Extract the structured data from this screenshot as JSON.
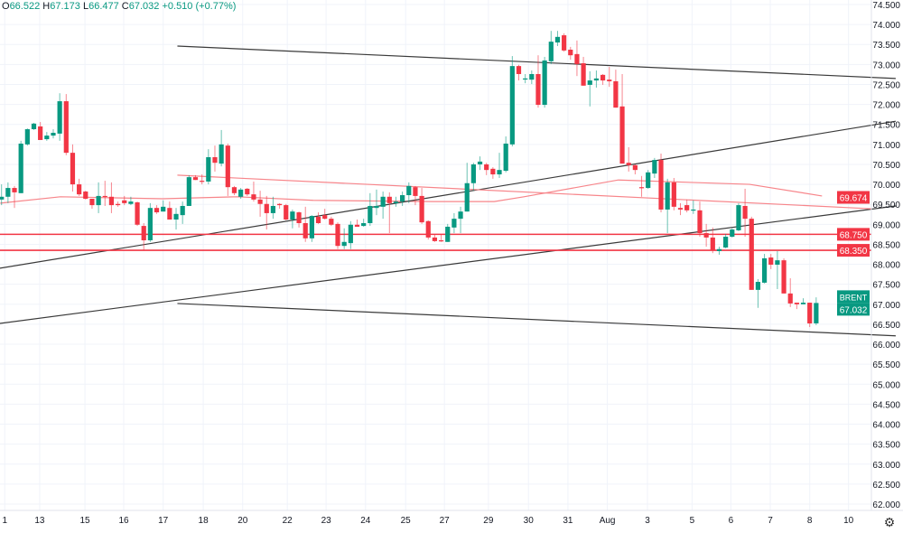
{
  "legend": {
    "o_label": "O",
    "o_value": "66.522",
    "h_label": "H",
    "h_value": "67.173",
    "l_label": "L",
    "l_value": "66.477",
    "c_label": "C",
    "c_value": "67.032",
    "change": "+0.510 (+0.77%)"
  },
  "settings_icon": "gear-icon",
  "chart_data": {
    "type": "candlestick",
    "symbol": "BRENT",
    "last_price": "67.032",
    "colors": {
      "up": "#089981",
      "down": "#f23645",
      "level": "#f23645",
      "ma": "#f7858a",
      "trend": "#3a3a3a"
    },
    "ylim": [
      62.0,
      74.5
    ],
    "y_ticks": [
      "74.500",
      "74.000",
      "73.500",
      "73.000",
      "72.500",
      "72.000",
      "71.500",
      "71.000",
      "70.500",
      "70.000",
      "69.500",
      "69.000",
      "68.500",
      "68.000",
      "67.500",
      "67.000",
      "66.500",
      "66.000",
      "65.500",
      "65.000",
      "64.500",
      "64.000",
      "63.500",
      "63.000",
      "62.500",
      "62.000"
    ],
    "x_ticks": [
      {
        "label": "1",
        "index": 0.5
      },
      {
        "label": "13",
        "index": 5.9
      },
      {
        "label": "15",
        "index": 12.9
      },
      {
        "label": "16",
        "index": 18.9
      },
      {
        "label": "17",
        "index": 25.0
      },
      {
        "label": "18",
        "index": 31.2
      },
      {
        "label": "20",
        "index": 37.3
      },
      {
        "label": "22",
        "index": 44.2
      },
      {
        "label": "23",
        "index": 50.2
      },
      {
        "label": "24",
        "index": 56.3
      },
      {
        "label": "25",
        "index": 62.5
      },
      {
        "label": "27",
        "index": 68.5
      },
      {
        "label": "29",
        "index": 75.3
      },
      {
        "label": "30",
        "index": 81.5
      },
      {
        "label": "31",
        "index": 87.6
      },
      {
        "label": "Aug",
        "index": 93.7
      },
      {
        "label": "3",
        "index": 99.9
      },
      {
        "label": "5",
        "index": 106.8
      },
      {
        "label": "6",
        "index": 112.8
      },
      {
        "label": "7",
        "index": 118.9
      },
      {
        "label": "8",
        "index": 125.0
      },
      {
        "label": "10",
        "index": 131.0
      }
    ],
    "candles_ohlc": [
      [
        69.62,
        70.0,
        69.48,
        69.69
      ],
      [
        69.69,
        70.05,
        69.53,
        69.91
      ],
      [
        69.91,
        69.96,
        69.41,
        69.8
      ],
      [
        69.78,
        71.09,
        69.78,
        71.02
      ],
      [
        71.0,
        71.4,
        70.97,
        71.38
      ],
      [
        71.38,
        71.54,
        71.36,
        71.52
      ],
      [
        71.45,
        71.56,
        71.11,
        71.11
      ],
      [
        71.13,
        71.31,
        71.09,
        71.22
      ],
      [
        71.22,
        71.38,
        71.15,
        71.29
      ],
      [
        71.27,
        72.28,
        71.09,
        72.08
      ],
      [
        72.08,
        72.26,
        70.73,
        70.79
      ],
      [
        70.79,
        71.0,
        69.82,
        70.0
      ],
      [
        70.0,
        70.14,
        69.71,
        69.75
      ],
      [
        69.82,
        69.84,
        69.62,
        69.64
      ],
      [
        69.64,
        69.64,
        69.39,
        69.48
      ],
      [
        69.48,
        70.05,
        69.28,
        69.71
      ],
      [
        69.71,
        70.09,
        69.46,
        69.69
      ],
      [
        69.69,
        70.05,
        69.28,
        69.48
      ],
      [
        69.51,
        69.57,
        69.44,
        69.48
      ],
      [
        69.6,
        69.71,
        69.48,
        69.53
      ],
      [
        69.51,
        69.69,
        69.48,
        69.57
      ],
      [
        69.55,
        69.57,
        68.96,
        68.99
      ],
      [
        68.96,
        69.03,
        68.35,
        68.6
      ],
      [
        68.6,
        69.53,
        68.56,
        69.41
      ],
      [
        69.41,
        69.48,
        69.26,
        69.3
      ],
      [
        69.32,
        69.6,
        69.32,
        69.44
      ],
      [
        69.41,
        69.57,
        69.12,
        69.12
      ],
      [
        69.12,
        69.41,
        68.87,
        69.26
      ],
      [
        69.23,
        69.57,
        69.01,
        69.46
      ],
      [
        69.46,
        70.23,
        69.46,
        70.18
      ],
      [
        70.18,
        70.23,
        70.11,
        70.11
      ],
      [
        70.09,
        70.25,
        70.0,
        70.07
      ],
      [
        70.07,
        70.88,
        70.0,
        70.68
      ],
      [
        70.68,
        70.97,
        70.32,
        70.54
      ],
      [
        70.52,
        71.36,
        70.45,
        71.0
      ],
      [
        70.97,
        71.02,
        69.71,
        69.93
      ],
      [
        69.93,
        69.96,
        69.73,
        69.78
      ],
      [
        69.69,
        69.91,
        69.64,
        69.87
      ],
      [
        69.89,
        69.91,
        69.71,
        69.75
      ],
      [
        69.75,
        70.07,
        69.57,
        69.62
      ],
      [
        69.62,
        69.84,
        69.19,
        69.51
      ],
      [
        69.51,
        69.71,
        68.87,
        69.28
      ],
      [
        69.28,
        69.69,
        69.14,
        69.46
      ],
      [
        69.51,
        69.53,
        69.39,
        69.48
      ],
      [
        69.48,
        69.51,
        69.1,
        69.12
      ],
      [
        69.12,
        69.37,
        68.9,
        69.32
      ],
      [
        69.3,
        69.32,
        68.92,
        69.03
      ],
      [
        69.03,
        69.44,
        68.56,
        68.65
      ],
      [
        68.65,
        69.23,
        68.56,
        69.21
      ],
      [
        69.19,
        69.3,
        69.01,
        69.03
      ],
      [
        69.23,
        69.39,
        69.12,
        69.14
      ],
      [
        69.14,
        69.19,
        68.96,
        68.99
      ],
      [
        69.01,
        69.05,
        68.38,
        68.46
      ],
      [
        68.46,
        68.9,
        68.38,
        68.56
      ],
      [
        68.53,
        69.08,
        68.38,
        68.99
      ],
      [
        68.99,
        69.12,
        68.94,
        68.94
      ],
      [
        68.96,
        69.14,
        68.94,
        69.03
      ],
      [
        69.03,
        69.78,
        68.96,
        69.46
      ],
      [
        69.41,
        69.87,
        69.23,
        69.46
      ],
      [
        69.44,
        69.82,
        69.14,
        69.69
      ],
      [
        69.69,
        69.8,
        68.78,
        69.53
      ],
      [
        69.53,
        69.69,
        69.44,
        69.57
      ],
      [
        69.57,
        69.82,
        69.46,
        69.73
      ],
      [
        69.73,
        70.05,
        69.53,
        69.96
      ],
      [
        69.93,
        69.96,
        69.48,
        69.71
      ],
      [
        69.71,
        69.91,
        69.01,
        69.05
      ],
      [
        69.08,
        69.1,
        68.62,
        68.67
      ],
      [
        68.67,
        68.74,
        68.56,
        68.58
      ],
      [
        68.6,
        68.74,
        68.56,
        68.58
      ],
      [
        68.56,
        69.01,
        68.56,
        68.94
      ],
      [
        68.92,
        69.28,
        68.78,
        69.14
      ],
      [
        69.14,
        69.44,
        68.78,
        69.32
      ],
      [
        69.32,
        70.54,
        69.32,
        70.03
      ],
      [
        70.03,
        70.54,
        69.84,
        70.5
      ],
      [
        70.5,
        70.7,
        70.36,
        70.57
      ],
      [
        70.5,
        70.54,
        70.23,
        70.36
      ],
      [
        70.39,
        70.43,
        70.14,
        70.25
      ],
      [
        70.25,
        70.79,
        70.16,
        70.36
      ],
      [
        70.34,
        71.2,
        70.3,
        71.02
      ],
      [
        71.0,
        73.21,
        70.95,
        72.96
      ],
      [
        72.96,
        72.99,
        72.6,
        72.76
      ],
      [
        72.65,
        72.76,
        72.53,
        72.65
      ],
      [
        72.62,
        72.85,
        72.51,
        72.76
      ],
      [
        72.76,
        73.23,
        71.92,
        71.99
      ],
      [
        71.99,
        73.19,
        71.92,
        73.1
      ],
      [
        73.08,
        73.84,
        73.01,
        73.57
      ],
      [
        73.55,
        73.84,
        73.46,
        73.69
      ],
      [
        73.73,
        73.78,
        73.32,
        73.35
      ],
      [
        73.37,
        73.44,
        73.12,
        73.23
      ],
      [
        73.26,
        73.6,
        72.71,
        73.01
      ],
      [
        73.03,
        73.19,
        72.47,
        72.47
      ],
      [
        72.49,
        72.83,
        71.95,
        72.6
      ],
      [
        72.6,
        72.85,
        72.42,
        72.65
      ],
      [
        72.74,
        72.76,
        72.49,
        72.6
      ],
      [
        72.62,
        72.94,
        72.44,
        72.58
      ],
      [
        72.58,
        72.87,
        71.92,
        71.92
      ],
      [
        71.95,
        72.76,
        70.52,
        70.52
      ],
      [
        70.54,
        70.93,
        70.32,
        70.48
      ],
      [
        70.48,
        70.5,
        70.25,
        70.36
      ],
      [
        69.93,
        70.21,
        69.69,
        69.91
      ],
      [
        69.91,
        70.36,
        69.89,
        70.3
      ],
      [
        70.27,
        70.66,
        70.16,
        70.61
      ],
      [
        70.61,
        70.77,
        69.3,
        69.37
      ],
      [
        69.37,
        70.14,
        68.78,
        70.05
      ],
      [
        70.05,
        70.16,
        69.35,
        69.44
      ],
      [
        69.41,
        69.53,
        69.23,
        69.37
      ],
      [
        69.48,
        69.62,
        69.3,
        69.35
      ],
      [
        69.35,
        69.6,
        69.26,
        69.37
      ],
      [
        69.35,
        69.57,
        68.69,
        68.78
      ],
      [
        68.78,
        69.01,
        68.44,
        68.67
      ],
      [
        68.67,
        68.92,
        68.28,
        68.35
      ],
      [
        68.33,
        68.44,
        68.24,
        68.38
      ],
      [
        68.42,
        68.76,
        68.4,
        68.69
      ],
      [
        68.69,
        68.9,
        68.67,
        68.87
      ],
      [
        68.85,
        69.53,
        68.83,
        69.48
      ],
      [
        69.46,
        69.89,
        68.69,
        69.14
      ],
      [
        69.14,
        69.19,
        67.36,
        67.36
      ],
      [
        67.36,
        67.63,
        66.91,
        67.56
      ],
      [
        67.54,
        68.26,
        67.52,
        68.15
      ],
      [
        68.17,
        68.26,
        67.88,
        67.99
      ],
      [
        67.99,
        68.33,
        67.38,
        68.1
      ],
      [
        68.1,
        68.15,
        67.27,
        67.27
      ],
      [
        67.27,
        67.65,
        66.93,
        67.02
      ],
      [
        67.04,
        67.04,
        66.88,
        67.0
      ],
      [
        67.0,
        67.15,
        67.0,
        67.04
      ],
      [
        67.04,
        67.04,
        66.43,
        66.52
      ],
      [
        66.522,
        67.173,
        66.477,
        67.032
      ]
    ],
    "horizontal_levels": [
      {
        "label": "68.750",
        "price": 68.75
      },
      {
        "label": "68.350",
        "price": 68.35
      }
    ],
    "ma_line": {
      "label": "69.674",
      "points": [
        [
          -0.2,
          69.53
        ],
        [
          9.1,
          69.69
        ],
        [
          24.9,
          69.64
        ],
        [
          36.5,
          69.69
        ],
        [
          48.2,
          69.6
        ],
        [
          66.8,
          69.57
        ],
        [
          76.2,
          69.57
        ],
        [
          80.8,
          69.69
        ],
        [
          95.4,
          70.11
        ],
        [
          115.7,
          70.0
        ],
        [
          126.9,
          69.71
        ]
      ]
    },
    "trendlines": [
      {
        "name": "channel-top",
        "from": [
          27.2,
          73.46
        ],
        "to": [
          138.3,
          72.65
        ],
        "color": "trend"
      },
      {
        "name": "channel-bottom",
        "from": [
          27.2,
          67.02
        ],
        "to": [
          138.3,
          66.21
        ],
        "color": "trend"
      },
      {
        "name": "rising-line-upper",
        "from": [
          -0.3,
          67.9
        ],
        "to": [
          138.3,
          71.58
        ],
        "color": "trend"
      },
      {
        "name": "rising-line-lower",
        "from": [
          -0.3,
          66.52
        ],
        "to": [
          138.3,
          69.46
        ],
        "color": "trend"
      },
      {
        "name": "descending-red-line",
        "from": [
          27.2,
          70.23
        ],
        "to": [
          134.5,
          69.39
        ],
        "color": "ma"
      }
    ]
  }
}
